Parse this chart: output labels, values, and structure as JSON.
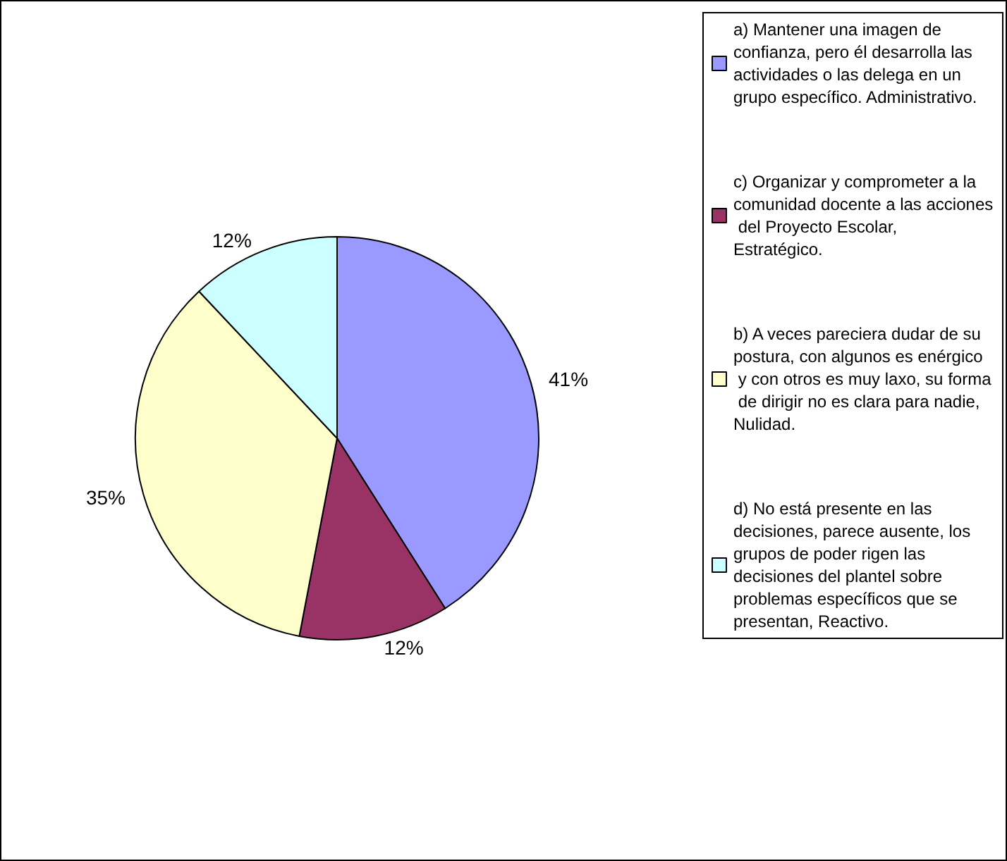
{
  "chart_data": {
    "type": "pie",
    "categories": [
      "a) Mantener una imagen de confianza, pero él desarrolla las actividades o las delega en un grupo específico. Administrativo.",
      "c) Organizar y comprometer a la comunidad docente a las acciones del Proyecto Escolar, Estratégico.",
      "b) A veces pareciera dudar de su postura, con algunos es enérgico y con otros es muy laxo, su forma de dirigir no es clara para nadie, Nulidad.",
      "d) No está presente en las decisiones, parece ausente, los grupos de poder rigen las decisiones del plantel sobre problemas específicos que se presentan, Reactivo."
    ],
    "values": [
      41,
      12,
      35,
      12
    ],
    "colors": [
      "#9999ff",
      "#993366",
      "#ffffcc",
      "#ccffff"
    ],
    "value_labels": [
      "41%",
      "12%",
      "35%",
      "12%"
    ],
    "legend": "right"
  }
}
